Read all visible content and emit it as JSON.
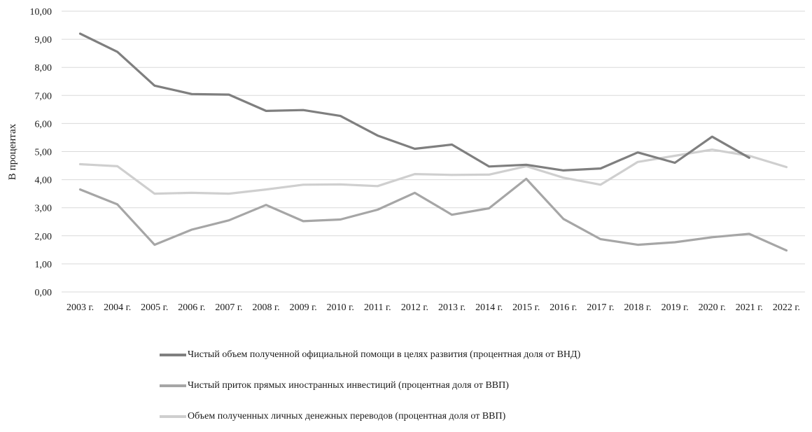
{
  "chart_data": {
    "type": "line",
    "title": "",
    "xlabel": "",
    "ylabel": "В процентах",
    "ylim": [
      0,
      10
    ],
    "ytick_labels": [
      "0,00",
      "1,00",
      "2,00",
      "3,00",
      "4,00",
      "5,00",
      "6,00",
      "7,00",
      "8,00",
      "9,00",
      "10,00"
    ],
    "categories": [
      "2003 г.",
      "2004 г.",
      "2005 г.",
      "2006 г.",
      "2007 г.",
      "2008 г.",
      "2009 г.",
      "2010 г.",
      "2011 г.",
      "2012 г.",
      "2013 г.",
      "2014 г.",
      "2015 г.",
      "2016 г.",
      "2017 г.",
      "2018 г.",
      "2019 г.",
      "2020 г.",
      "2021 г.",
      "2022 г."
    ],
    "grid": true,
    "legend_position": "bottom",
    "series": [
      {
        "name": "Чистый объем полученной официальной помощи в целях развития (процентная доля от ВНД)",
        "color": "#7f7f7f",
        "values": [
          9.2,
          8.55,
          7.35,
          7.05,
          7.03,
          6.45,
          6.48,
          6.27,
          5.57,
          5.1,
          5.25,
          4.47,
          4.53,
          4.33,
          4.4,
          4.97,
          4.6,
          5.53,
          4.78,
          null
        ]
      },
      {
        "name": "Чистый приток прямых иностранных инвестиций (процентная доля от ВВП)",
        "color": "#a6a6a6",
        "values": [
          3.65,
          3.12,
          1.68,
          2.22,
          2.55,
          3.1,
          2.52,
          2.58,
          2.93,
          3.53,
          2.75,
          2.98,
          4.03,
          2.6,
          1.88,
          1.68,
          1.77,
          1.95,
          2.07,
          1.48
        ]
      },
      {
        "name": "Объем полученных личных денежных переводов (процентная доля от ВВП)",
        "color": "#cfcfcf",
        "values": [
          4.55,
          4.48,
          3.5,
          3.53,
          3.5,
          3.65,
          3.82,
          3.83,
          3.77,
          4.2,
          4.17,
          4.18,
          4.48,
          4.07,
          3.82,
          4.63,
          4.85,
          5.07,
          4.85,
          4.45
        ]
      }
    ]
  }
}
